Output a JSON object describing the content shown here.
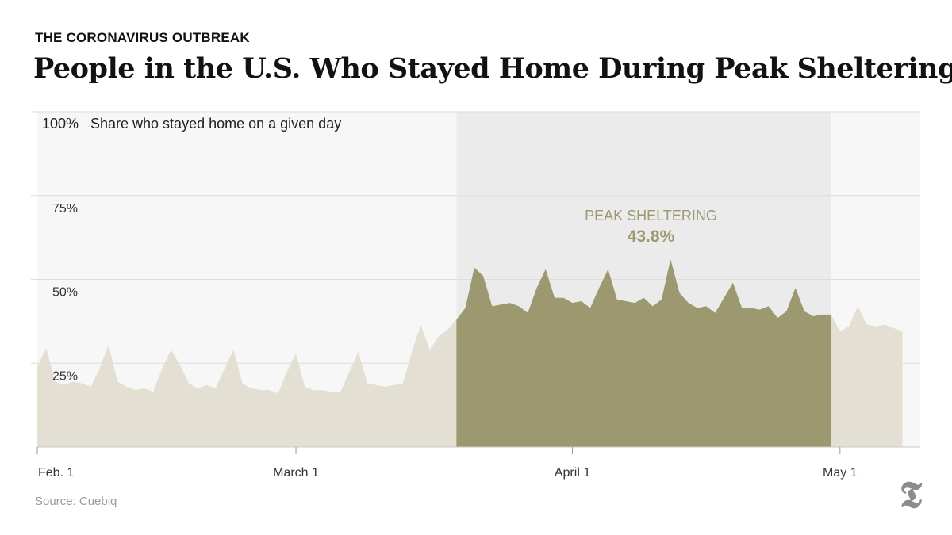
{
  "kicker": "THE CORONAVIRUS OUTBREAK",
  "headline": "People in the U.S. Who Stayed Home During Peak Sheltering",
  "source": "Source: Cuebiq",
  "logo_glyph": "𝕿",
  "annotation": {
    "label": "PEAK SHELTERING",
    "value": "43.8%"
  },
  "colors": {
    "plot_bg": "#f7f7f7",
    "highlight_bg": "#ebebeb",
    "area_light": "#e3e0d3",
    "area_peak": "#9c9870",
    "annotation_text": "#9c9870",
    "grid": "#dddddd"
  },
  "chart_data": {
    "type": "area",
    "ylabel": "Share who stayed home on a given day",
    "ylim": [
      0,
      100
    ],
    "y_ticks": [
      {
        "value": 25,
        "label": "25%"
      },
      {
        "value": 50,
        "label": "50%"
      },
      {
        "value": 75,
        "label": "75%"
      },
      {
        "value": 100,
        "label": "100%"
      }
    ],
    "x_ticks": [
      {
        "date": "2020-02-01",
        "label": "Feb. 1"
      },
      {
        "date": "2020-03-01",
        "label": "March 1"
      },
      {
        "date": "2020-04-01",
        "label": "April 1"
      },
      {
        "date": "2020-05-01",
        "label": "May 1"
      }
    ],
    "x_range": [
      "2020-02-01",
      "2020-05-10"
    ],
    "peak_period": {
      "start": "2020-03-19",
      "end": "2020-04-30"
    },
    "grid": true,
    "series": [
      {
        "start_date": "2020-02-01",
        "values": [
          24,
          29.5,
          19.5,
          18.5,
          19.5,
          19,
          18,
          23.5,
          30.5,
          19.5,
          18,
          17,
          17.5,
          16.5,
          23.5,
          29,
          24.5,
          19,
          17.5,
          18.5,
          17.5,
          23.5,
          29,
          19,
          17.5,
          17,
          17,
          16,
          22.5,
          28,
          18,
          17,
          17,
          16.5,
          16.5,
          22.5,
          28.5,
          19,
          18.5,
          18,
          18.5,
          19,
          28.5,
          36.5,
          29,
          33,
          35,
          38,
          41.5,
          53.5,
          51,
          42,
          42.5,
          43,
          42,
          40,
          47.5,
          53,
          44.5,
          44.5,
          43,
          43.5,
          41.5,
          47.5,
          53,
          44,
          43.5,
          43,
          44.5,
          42,
          44,
          56,
          46,
          43,
          41.5,
          42,
          40,
          44.5,
          49,
          41.5,
          41.5,
          41,
          42,
          38.5,
          40.5,
          47.5,
          40.5,
          39,
          39.5,
          39.5,
          34.5,
          36,
          42,
          36.5,
          36,
          36.5,
          35.5,
          34.5
        ]
      }
    ]
  }
}
